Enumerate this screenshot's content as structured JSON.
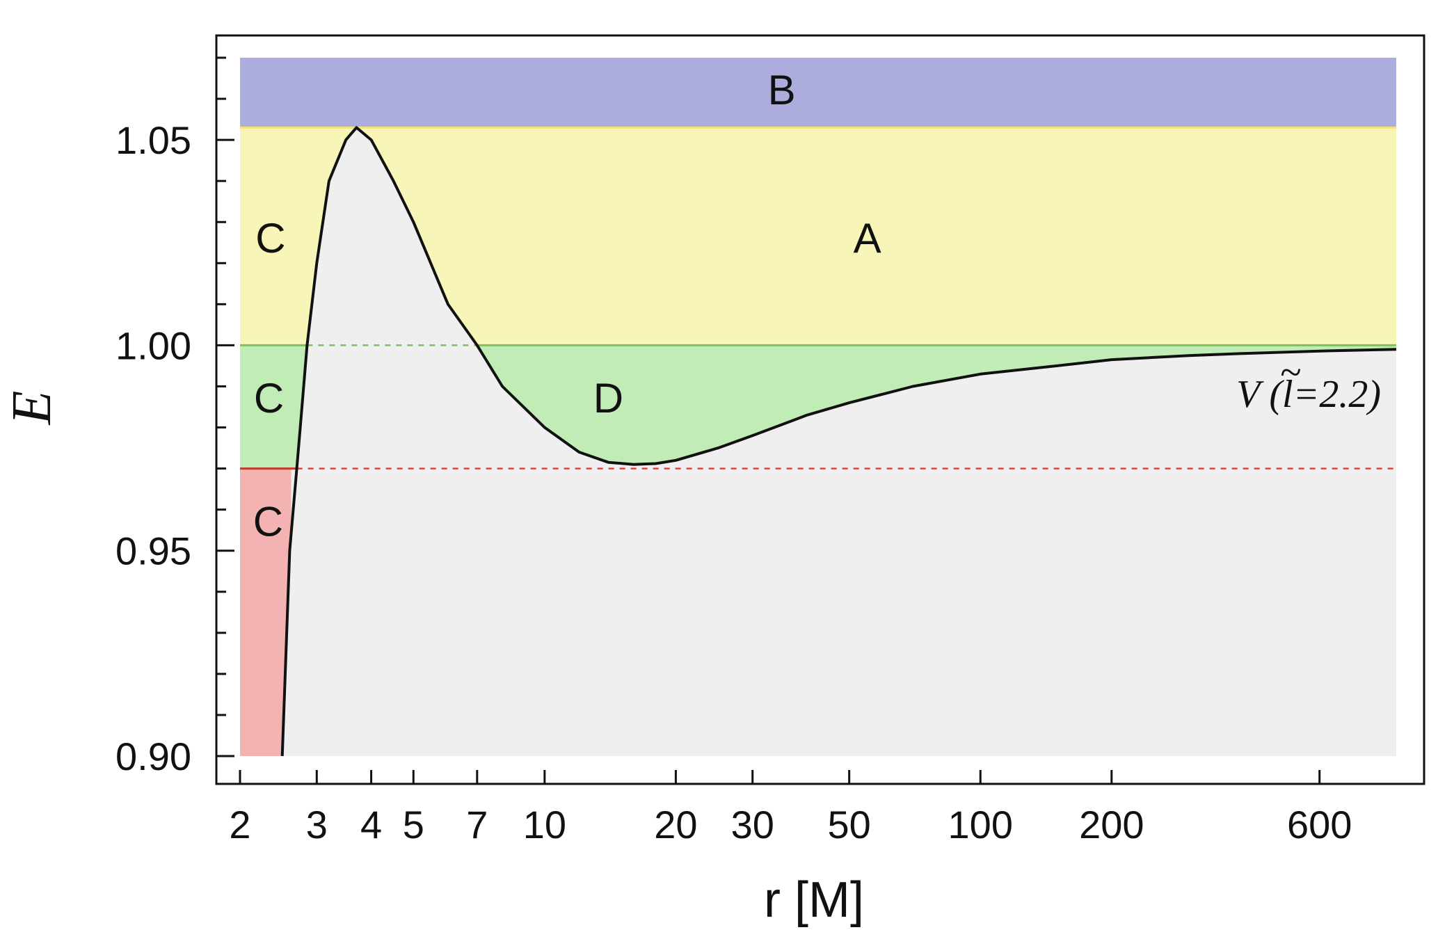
{
  "chart_data": {
    "type": "line",
    "title": "",
    "xlabel": "r [M]",
    "ylabel": "E",
    "xscale": "log",
    "xlim": [
      2,
      900
    ],
    "ylim": [
      0.9,
      1.07
    ],
    "xticks": [
      2,
      3,
      4,
      5,
      7,
      10,
      20,
      30,
      50,
      100,
      200,
      600
    ],
    "yticks": [
      0.9,
      0.95,
      1.0,
      1.05
    ],
    "ytick_labels": [
      "0.90",
      "0.95",
      "1.00",
      "1.05"
    ],
    "grid": false,
    "series": [
      {
        "name": "V (l̃=2.2)",
        "label_prefix": "V (",
        "label_symbol": "l",
        "label_suffix": "=2.2)",
        "color": "#111111",
        "points": [
          [
            2.5,
            0.9
          ],
          [
            2.6,
            0.95
          ],
          [
            2.7,
            0.97
          ],
          [
            2.75,
            0.98
          ],
          [
            2.85,
            1.0
          ],
          [
            3.0,
            1.02
          ],
          [
            3.2,
            1.04
          ],
          [
            3.5,
            1.05
          ],
          [
            3.7,
            1.053
          ],
          [
            4.0,
            1.05
          ],
          [
            4.5,
            1.04
          ],
          [
            5.0,
            1.03
          ],
          [
            6.0,
            1.01
          ],
          [
            7.0,
            1.0
          ],
          [
            8.0,
            0.99
          ],
          [
            10.0,
            0.98
          ],
          [
            12.0,
            0.974
          ],
          [
            14.0,
            0.9715
          ],
          [
            16.0,
            0.971
          ],
          [
            18.0,
            0.9712
          ],
          [
            20.0,
            0.972
          ],
          [
            25.0,
            0.975
          ],
          [
            30.0,
            0.978
          ],
          [
            40.0,
            0.983
          ],
          [
            50.0,
            0.986
          ],
          [
            70.0,
            0.99
          ],
          [
            100.0,
            0.993
          ],
          [
            150.0,
            0.995
          ],
          [
            200.0,
            0.9965
          ],
          [
            300.0,
            0.9975
          ],
          [
            400.0,
            0.998
          ],
          [
            600.0,
            0.9986
          ],
          [
            900.0,
            0.999
          ]
        ]
      }
    ],
    "reference_lines": [
      {
        "y": 1.0,
        "color": "#7bc25a",
        "style": "dashed"
      },
      {
        "y": 0.97,
        "color": "#d24b3c",
        "style": "dashed"
      }
    ],
    "regions": [
      {
        "label": "A",
        "color": "#f7f5b8",
        "label_x": 55,
        "label_y": 1.026
      },
      {
        "label": "B",
        "color": "#adaddd",
        "label_x": 35,
        "label_y": 1.062
      },
      {
        "label": "C",
        "color": "#f7f5b8",
        "label_x": 2.35,
        "label_y": 1.026
      },
      {
        "label": "C",
        "color": "#c2ecb6",
        "label_x": 2.33,
        "label_y": 0.987
      },
      {
        "label": "C",
        "color": "#f4b3b3",
        "label_x": 2.32,
        "label_y": 0.957
      },
      {
        "label": "D",
        "color": "#c2ecb6",
        "label_x": 14,
        "label_y": 0.987
      }
    ],
    "bands": {
      "B": [
        1.053,
        1.07
      ],
      "A": [
        1.0,
        1.053
      ],
      "D": [
        0.97,
        1.0
      ],
      "C_red": [
        0.9,
        0.97
      ]
    },
    "background_color": "#efefef"
  }
}
